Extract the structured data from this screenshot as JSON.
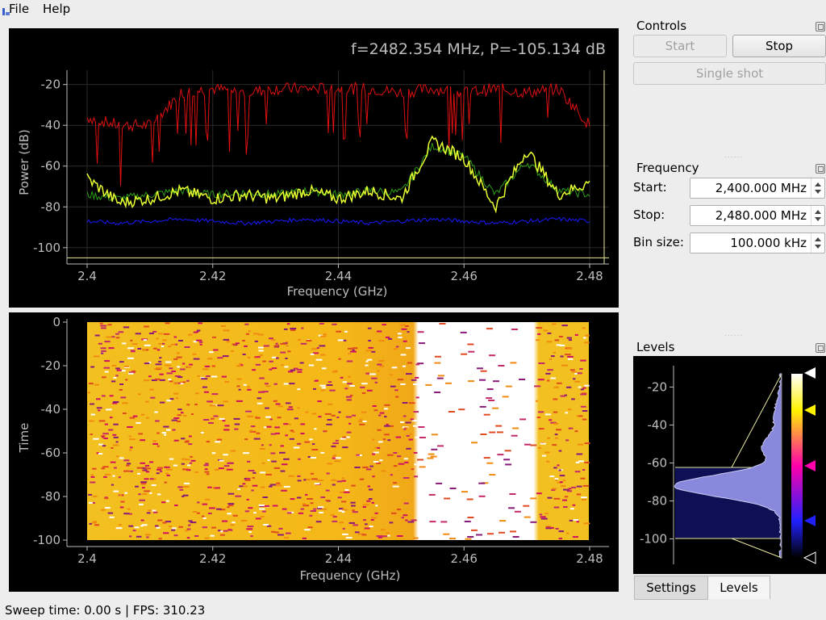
{
  "menu": {
    "file": "File",
    "help": "Help"
  },
  "spectrum": {
    "readout": "f=2482.354 MHz, P=-105.134 dB",
    "xlabel": "Frequency (GHz)",
    "ylabel": "Power (dB)",
    "x_ticks": [
      "2.4",
      "2.42",
      "2.44",
      "2.46",
      "2.48"
    ],
    "y_ticks": [
      "-20",
      "-40",
      "-60",
      "-80",
      "-100"
    ]
  },
  "waterfall": {
    "xlabel": "Frequency (GHz)",
    "ylabel": "Time",
    "x_ticks": [
      "2.4",
      "2.42",
      "2.44",
      "2.46",
      "2.48"
    ],
    "y_ticks": [
      "0",
      "-20",
      "-40",
      "-60",
      "-80",
      "-100"
    ]
  },
  "controls": {
    "title": "Controls",
    "start_label": "Start",
    "stop_label": "Stop",
    "single_shot_label": "Single shot"
  },
  "frequency": {
    "title": "Frequency",
    "start_label": "Start:",
    "start_value": "2,400.000 MHz",
    "stop_label": "Stop:",
    "stop_value": "2,480.000 MHz",
    "bin_label": "Bin size:",
    "bin_value": "100.000 kHz"
  },
  "levels": {
    "title": "Levels",
    "y_ticks": [
      "-20",
      "-40",
      "-60",
      "-80",
      "-100"
    ]
  },
  "tabs": {
    "settings": "Settings",
    "levels": "Levels"
  },
  "status": "Sweep time: 0.00 s | FPS: 310.23",
  "colors": {
    "max_hold": "#e01010",
    "average": "#2e9e1a",
    "current": "#e8ff30",
    "min_hold": "#1a1aff",
    "marker_line": "#e8e8a0"
  },
  "chart_data": [
    {
      "type": "line",
      "xlabel": "Frequency (GHz)",
      "ylabel": "Power (dB)",
      "xlim": [
        2.4,
        2.48
      ],
      "ylim": [
        -108,
        -13
      ],
      "x": [
        2.4,
        2.405,
        2.41,
        2.415,
        2.42,
        2.425,
        2.43,
        2.435,
        2.44,
        2.445,
        2.45,
        2.455,
        2.46,
        2.465,
        2.47,
        2.475,
        2.48
      ],
      "series": [
        {
          "values": [
            -36,
            -40,
            -40,
            -24,
            -22,
            -24,
            -22,
            -22,
            -22,
            -22,
            -24,
            -22,
            -24,
            -22,
            -24,
            -22,
            -40
          ]
        },
        {
          "values": [
            -74,
            -76,
            -74,
            -72,
            -74,
            -73,
            -74,
            -72,
            -74,
            -72,
            -73,
            -50,
            -55,
            -74,
            -58,
            -72,
            -74
          ]
        },
        {
          "values": [
            -66,
            -78,
            -76,
            -72,
            -76,
            -74,
            -76,
            -72,
            -76,
            -72,
            -76,
            -48,
            -56,
            -80,
            -52,
            -74,
            -68
          ]
        },
        {
          "values": [
            -87,
            -88,
            -87,
            -86,
            -87,
            -88,
            -87,
            -86,
            -87,
            -88,
            -87,
            -86,
            -87,
            -88,
            -87,
            -86,
            -87
          ]
        }
      ]
    },
    {
      "type": "heatmap",
      "xlabel": "Frequency (GHz)",
      "ylabel": "Time",
      "xlim": [
        2.4,
        2.48
      ],
      "ylim": [
        -100,
        0
      ]
    }
  ]
}
